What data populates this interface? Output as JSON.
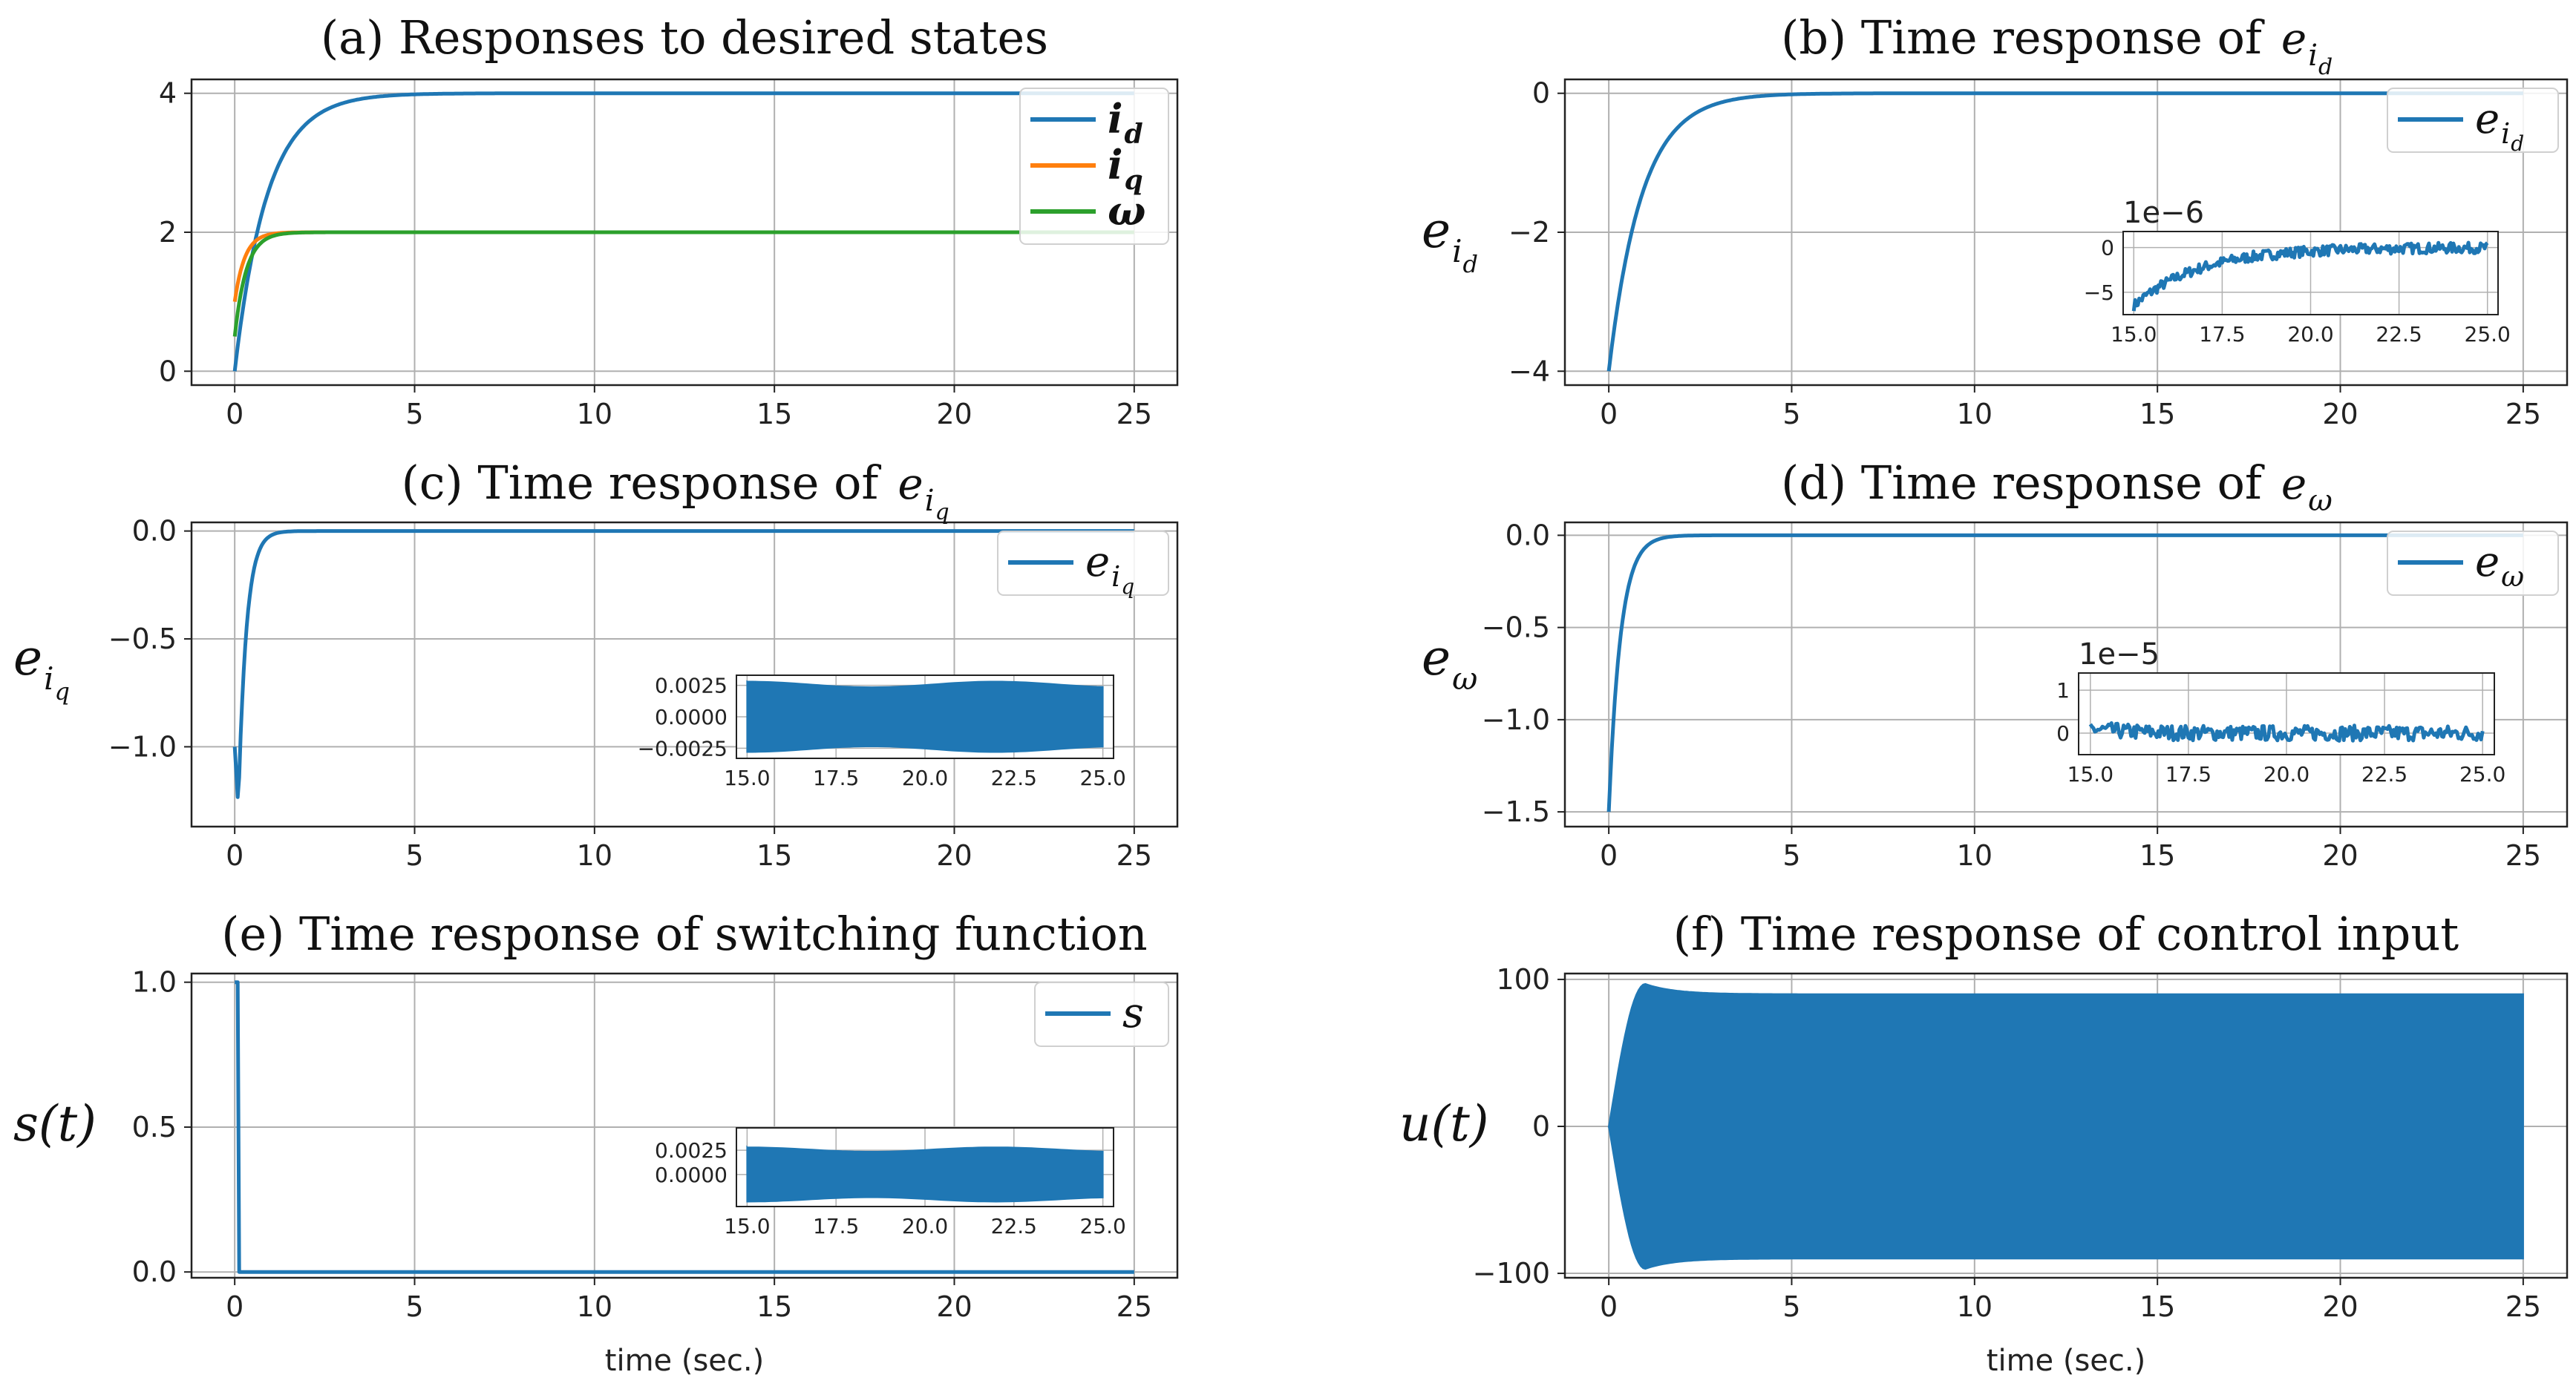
{
  "colors": {
    "blue": "#1f77b4",
    "orange": "#ff7f0e",
    "green": "#2ca02c",
    "grid": "#b0b0b0"
  },
  "xlabel": "time (sec.)",
  "chart_data": [
    {
      "id": "a",
      "type": "line",
      "title": "(a) Responses to desired states",
      "xlim": [
        -1.2,
        26.2
      ],
      "ylim": [
        -0.2,
        4.2
      ],
      "xticks": [
        0,
        5,
        10,
        15,
        20,
        25
      ],
      "yticks": [
        0,
        2,
        4
      ],
      "ylabel": "",
      "legend_position": "upper-right",
      "series": [
        {
          "name": "i_d",
          "legend_main": "i",
          "legend_sub": "d",
          "color": "#1f77b4",
          "model": "first_order",
          "start": 0.0,
          "final": 4.0,
          "tau": 0.9
        },
        {
          "name": "i_q",
          "legend_main": "i",
          "legend_sub": "q",
          "color": "#ff7f0e",
          "model": "first_order",
          "start": 1.0,
          "final": 2.0,
          "tau": 0.28
        },
        {
          "name": "ω",
          "legend_main": "ω",
          "legend_sub": "",
          "color": "#2ca02c",
          "model": "first_order",
          "start": 0.5,
          "final": 2.0,
          "tau": 0.32
        }
      ]
    },
    {
      "id": "b",
      "type": "line",
      "title": "(b) Time response of",
      "title_var": "e",
      "title_sub": "i_d",
      "xlim": [
        -1.2,
        26.2
      ],
      "ylim": [
        -4.2,
        0.2
      ],
      "xticks": [
        0,
        5,
        10,
        15,
        20,
        25
      ],
      "yticks": [
        0,
        -2,
        -4
      ],
      "ytick_labels": [
        "0",
        "−2",
        "−4"
      ],
      "ylabel": "e",
      "ylabel_sub": "i_d",
      "legend_position": "upper-right",
      "series": [
        {
          "name": "e_id",
          "legend_main": "e",
          "legend_sub": "i_d",
          "color": "#1f77b4",
          "model": "first_order",
          "start": -4.0,
          "final": 0.0,
          "tau": 0.9
        }
      ],
      "inset": {
        "xlim": [
          14.7,
          25.3
        ],
        "ylim": [
          -7.5,
          1.8
        ],
        "xticks": [
          15.0,
          17.5,
          20.0,
          22.5,
          25.0
        ],
        "xtick_labels": [
          "15.0",
          "17.5",
          "20.0",
          "22.5",
          "25.0"
        ],
        "yticks": [
          0,
          -5
        ],
        "ytick_labels": [
          "0",
          "−5"
        ],
        "multiplier": "1e−6",
        "model": "noisy_decay",
        "start": -6.5,
        "final": 0.0,
        "rate": 0.55,
        "noise": 0.6
      }
    },
    {
      "id": "c",
      "type": "line",
      "title": "(c) Time response of",
      "title_var": "e",
      "title_sub": "i_q",
      "xlim": [
        -1.2,
        26.2
      ],
      "ylim": [
        -1.37,
        0.04
      ],
      "xticks": [
        0,
        5,
        10,
        15,
        20,
        25
      ],
      "yticks": [
        0.0,
        -0.5,
        -1.0
      ],
      "ytick_labels": [
        "0.0",
        "−0.5",
        "−1.0"
      ],
      "ylabel": "e",
      "ylabel_sub": "i_q",
      "legend_position": "upper-right",
      "series": [
        {
          "name": "e_iq",
          "legend_main": "e",
          "legend_sub": "i_q",
          "color": "#1f77b4",
          "model": "dip_recover",
          "start": -1.0,
          "peak": -1.28,
          "final": 0.0,
          "tau": 0.22
        }
      ],
      "inset": {
        "xlim": [
          14.7,
          25.3
        ],
        "ylim": [
          -0.0033,
          0.0033
        ],
        "xticks": [
          15.0,
          17.5,
          20.0,
          22.5,
          25.0
        ],
        "xtick_labels": [
          "15.0",
          "17.5",
          "20.0",
          "22.5",
          "25.0"
        ],
        "yticks": [
          0.0025,
          0.0,
          -0.0025
        ],
        "ytick_labels": [
          "0.0025",
          "0.0000",
          "−0.0025"
        ],
        "model": "band",
        "amplitude": 0.0028
      }
    },
    {
      "id": "d",
      "type": "line",
      "title": "(d) Time response of",
      "title_var": "e",
      "title_sub": "ω",
      "xlim": [
        -1.2,
        26.2
      ],
      "ylim": [
        -1.58,
        0.07
      ],
      "xticks": [
        0,
        5,
        10,
        15,
        20,
        25
      ],
      "yticks": [
        0.0,
        -0.5,
        -1.0,
        -1.5
      ],
      "ytick_labels": [
        "0.0",
        "−0.5",
        "−1.0",
        "−1.5"
      ],
      "ylabel": "e",
      "ylabel_sub": "ω",
      "legend_position": "upper-right",
      "series": [
        {
          "name": "e_w",
          "legend_main": "e",
          "legend_sub": "ω",
          "color": "#1f77b4",
          "model": "first_order",
          "start": -1.5,
          "final": 0.0,
          "tau": 0.32
        }
      ],
      "inset": {
        "xlim": [
          14.7,
          25.3
        ],
        "ylim": [
          -0.5,
          1.4
        ],
        "xticks": [
          15.0,
          17.5,
          20.0,
          22.5,
          25.0
        ],
        "xtick_labels": [
          "15.0",
          "17.5",
          "20.0",
          "22.5",
          "25.0"
        ],
        "yticks": [
          1,
          0
        ],
        "ytick_labels": [
          "1",
          "0"
        ],
        "multiplier": "1e−5",
        "model": "noisy_decay",
        "start": 0.1,
        "final": 0.0,
        "rate": 1.0,
        "noise": 0.18
      }
    },
    {
      "id": "e",
      "type": "line",
      "title": "(e) Time response of switching function",
      "xlim": [
        -1.2,
        26.2
      ],
      "ylim": [
        -0.02,
        1.03
      ],
      "xticks": [
        0,
        5,
        10,
        15,
        20,
        25
      ],
      "yticks": [
        1.0,
        0.5,
        0.0
      ],
      "ytick_labels": [
        "1.0",
        "0.5",
        "0.0"
      ],
      "ylabel": "s(t)",
      "xlabel": "time (sec.)",
      "legend_position": "upper-right",
      "series": [
        {
          "name": "s",
          "legend_main": "s",
          "legend_sub": "",
          "color": "#1f77b4",
          "model": "step_drop",
          "start": 1.0,
          "final": 0.0,
          "drop_time": 0.12
        }
      ],
      "inset": {
        "xlim": [
          14.7,
          25.3
        ],
        "ylim": [
          -0.0033,
          0.0048
        ],
        "xticks": [
          15.0,
          17.5,
          20.0,
          22.5,
          25.0
        ],
        "xtick_labels": [
          "15.0",
          "17.5",
          "20.0",
          "22.5",
          "25.0"
        ],
        "yticks": [
          0.0025,
          0.0
        ],
        "ytick_labels": [
          "0.0025",
          "0.0000"
        ],
        "model": "band",
        "amplitude": 0.0028
      }
    },
    {
      "id": "f",
      "type": "line",
      "title": "(f) Time response of control input",
      "xlim": [
        -1.2,
        26.2
      ],
      "ylim": [
        -103,
        104
      ],
      "xticks": [
        0,
        5,
        10,
        15,
        20,
        25
      ],
      "yticks": [
        100,
        0,
        -100
      ],
      "ytick_labels": [
        "100",
        "0",
        "−100"
      ],
      "ylabel": "u(t)",
      "xlabel": "time (sec.)",
      "series": [
        {
          "name": "u",
          "color": "#1f77b4",
          "model": "oscillation_band",
          "amplitude": 90,
          "peak": 97,
          "rise": 1.0
        }
      ]
    }
  ]
}
